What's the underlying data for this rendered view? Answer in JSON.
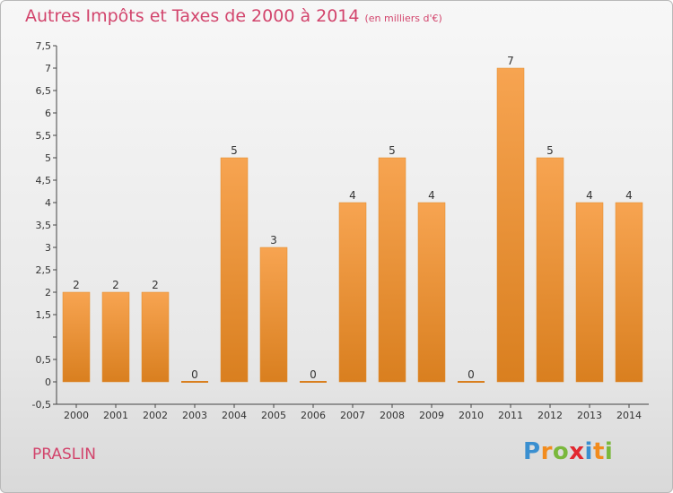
{
  "header": {
    "title": "Autres Impôts et Taxes de 2000 à 2014",
    "unit": "(en milliers d'€)"
  },
  "footer": {
    "commune": "PRASLIN",
    "logo_text": "Proxiti",
    "logo_letters": [
      {
        "ch": "P",
        "color": "#3a8fd0"
      },
      {
        "ch": "r",
        "color": "#f28c1e"
      },
      {
        "ch": "o",
        "color": "#7ab83c"
      },
      {
        "ch": "x",
        "color": "#e2282f"
      },
      {
        "ch": "i",
        "color": "#3a8fd0"
      },
      {
        "ch": "t",
        "color": "#f28c1e"
      },
      {
        "ch": "i",
        "color": "#7ab83c"
      }
    ]
  },
  "colors": {
    "title": "#d2446c",
    "bar_light": "#f7a451",
    "bar_dark": "#d97f1f",
    "bar_stroke": "#e08a2a"
  },
  "chart_data": {
    "type": "bar",
    "title": "Autres Impôts et Taxes de 2000 à 2014",
    "subtitle": "(en milliers d'€)",
    "xlabel": "",
    "ylabel": "",
    "categories": [
      "2000",
      "2001",
      "2002",
      "2003",
      "2004",
      "2005",
      "2006",
      "2007",
      "2008",
      "2009",
      "2010",
      "2011",
      "2012",
      "2013",
      "2014"
    ],
    "values": [
      2,
      2,
      2,
      0,
      5,
      3,
      0,
      4,
      5,
      4,
      0,
      7,
      5,
      4,
      4
    ],
    "data_labels": [
      "2",
      "2",
      "2",
      "0",
      "5",
      "3",
      "0",
      "4",
      "5",
      "4",
      "0",
      "7",
      "5",
      "4",
      "4"
    ],
    "ylim": [
      -0.5,
      7.5
    ],
    "yticks": [
      -0.5,
      0,
      0.5,
      1,
      1.5,
      2,
      2.5,
      3,
      3.5,
      4,
      4.5,
      5,
      5.5,
      6,
      6.5,
      7,
      7.5
    ],
    "ytick_labels": [
      "-0,5",
      "0",
      "0,5",
      "",
      "1,5",
      "2",
      "2,5",
      "3",
      "3,5",
      "4",
      "4,5",
      "5",
      "5,5",
      "6",
      "6,5",
      "7",
      "7,5"
    ],
    "grid": false,
    "legend": "none"
  }
}
